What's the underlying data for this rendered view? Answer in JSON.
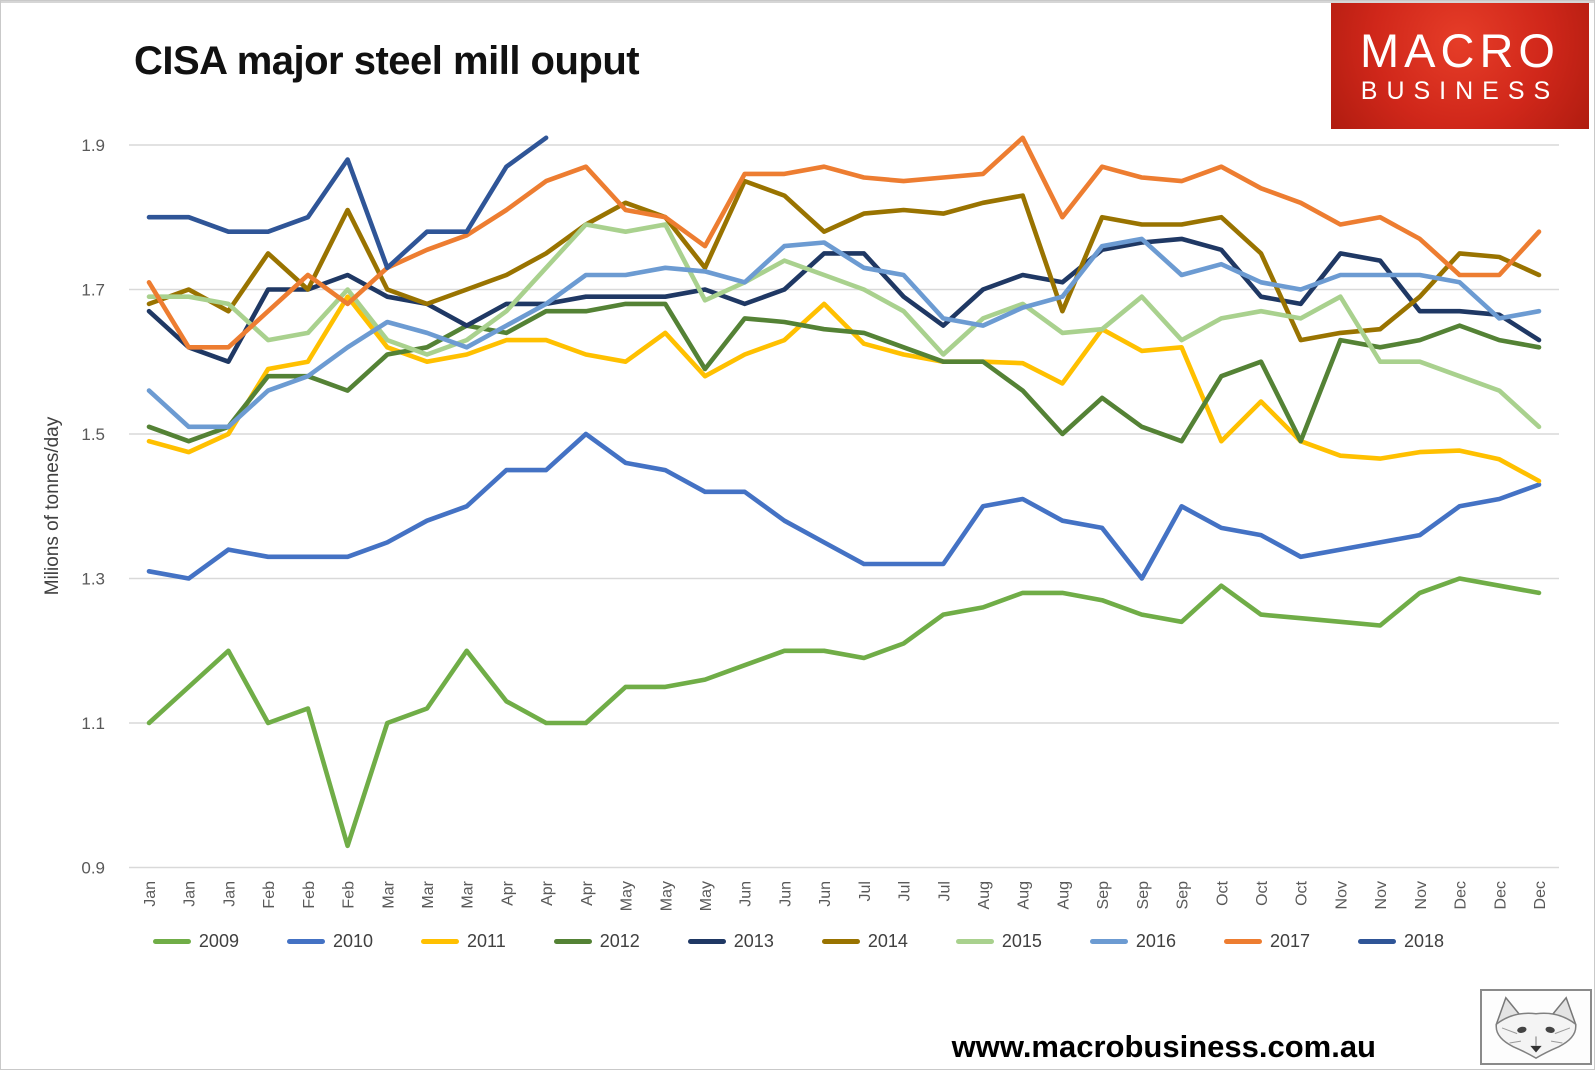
{
  "title": "CISA major steel mill ouput",
  "logo": {
    "line1": "MACRO",
    "line2": "BUSINESS"
  },
  "footer": {
    "website": "www.macrobusiness.com.au",
    "fox_icon": "fox-sketch-icon"
  },
  "chart_data": {
    "type": "line",
    "title": "CISA major steel mill ouput",
    "xlabel": "",
    "ylabel": "Milions of tonnes/day",
    "ylim": [
      0.9,
      1.95
    ],
    "yticks": [
      1.9,
      1.7,
      1.5,
      1.3,
      1.1,
      0.9
    ],
    "grid": "horizontal",
    "legend_position": "bottom",
    "x_labels": [
      "Jan",
      "Jan",
      "Jan",
      "Feb",
      "Feb",
      "Feb",
      "Mar",
      "Mar",
      "Mar",
      "Apr",
      "Apr",
      "Apr",
      "May",
      "May",
      "May",
      "Jun",
      "Jun",
      "Jun",
      "Jul",
      "Jul",
      "Jul",
      "Aug",
      "Aug",
      "Aug",
      "Sep",
      "Sep",
      "Sep",
      "Oct",
      "Oct",
      "Oct",
      "Nov",
      "Nov",
      "Nov",
      "Dec",
      "Dec",
      "Dec"
    ],
    "series": [
      {
        "name": "2009",
        "color": "#70AD47",
        "values": [
          1.1,
          1.15,
          1.2,
          1.1,
          1.12,
          0.93,
          1.1,
          1.12,
          1.2,
          1.13,
          1.1,
          1.1,
          1.15,
          1.15,
          1.16,
          1.18,
          1.2,
          1.2,
          1.19,
          1.21,
          1.25,
          1.26,
          1.28,
          1.28,
          1.27,
          1.25,
          1.24,
          1.29,
          1.25,
          1.245,
          1.24,
          1.235,
          1.28,
          1.3,
          1.29,
          1.28
        ]
      },
      {
        "name": "2010",
        "color": "#4472C4",
        "values": [
          1.31,
          1.3,
          1.34,
          1.33,
          1.33,
          1.33,
          1.35,
          1.38,
          1.4,
          1.45,
          1.45,
          1.5,
          1.46,
          1.45,
          1.42,
          1.42,
          1.38,
          1.35,
          1.32,
          1.32,
          1.32,
          1.4,
          1.41,
          1.38,
          1.37,
          1.3,
          1.4,
          1.37,
          1.36,
          1.33,
          1.34,
          1.35,
          1.36,
          1.4,
          1.41,
          1.43
        ]
      },
      {
        "name": "2011",
        "color": "#FFC000",
        "values": [
          1.49,
          1.475,
          1.5,
          1.59,
          1.6,
          1.69,
          1.62,
          1.6,
          1.61,
          1.63,
          1.63,
          1.61,
          1.6,
          1.64,
          1.58,
          1.61,
          1.63,
          1.68,
          1.625,
          1.61,
          1.6,
          1.6,
          1.598,
          1.57,
          1.645,
          1.615,
          1.62,
          1.49,
          1.545,
          1.49,
          1.47,
          1.466,
          1.475,
          1.477,
          1.465,
          1.435
        ]
      },
      {
        "name": "2012",
        "color": "#548235",
        "values": [
          1.51,
          1.49,
          1.51,
          1.58,
          1.58,
          1.56,
          1.61,
          1.62,
          1.65,
          1.64,
          1.67,
          1.67,
          1.68,
          1.68,
          1.59,
          1.66,
          1.655,
          1.645,
          1.64,
          1.62,
          1.6,
          1.6,
          1.56,
          1.5,
          1.55,
          1.51,
          1.49,
          1.58,
          1.6,
          1.49,
          1.63,
          1.62,
          1.63,
          1.65,
          1.63,
          1.62
        ]
      },
      {
        "name": "2013",
        "color": "#1F3864",
        "values": [
          1.67,
          1.62,
          1.6,
          1.7,
          1.7,
          1.72,
          1.69,
          1.68,
          1.65,
          1.68,
          1.68,
          1.69,
          1.69,
          1.69,
          1.7,
          1.68,
          1.7,
          1.75,
          1.75,
          1.69,
          1.65,
          1.7,
          1.72,
          1.71,
          1.755,
          1.765,
          1.77,
          1.755,
          1.69,
          1.68,
          1.75,
          1.74,
          1.67,
          1.67,
          1.665,
          1.63
        ]
      },
      {
        "name": "2014",
        "color": "#997300",
        "values": [
          1.68,
          1.7,
          1.67,
          1.75,
          1.7,
          1.81,
          1.7,
          1.68,
          1.7,
          1.72,
          1.75,
          1.79,
          1.82,
          1.8,
          1.73,
          1.85,
          1.83,
          1.78,
          1.805,
          1.81,
          1.805,
          1.82,
          1.83,
          1.67,
          1.8,
          1.79,
          1.79,
          1.8,
          1.75,
          1.63,
          1.64,
          1.645,
          1.69,
          1.75,
          1.745,
          1.72
        ]
      },
      {
        "name": "2015",
        "color": "#A9D18E",
        "values": [
          1.69,
          1.69,
          1.68,
          1.63,
          1.64,
          1.7,
          1.63,
          1.61,
          1.63,
          1.67,
          1.73,
          1.79,
          1.78,
          1.79,
          1.685,
          1.71,
          1.74,
          1.72,
          1.7,
          1.67,
          1.61,
          1.66,
          1.68,
          1.64,
          1.645,
          1.69,
          1.63,
          1.66,
          1.67,
          1.66,
          1.69,
          1.6,
          1.6,
          1.58,
          1.56,
          1.51
        ]
      },
      {
        "name": "2016",
        "color": "#6C9BD2",
        "values": [
          1.56,
          1.51,
          1.51,
          1.56,
          1.58,
          1.62,
          1.655,
          1.64,
          1.62,
          1.65,
          1.68,
          1.72,
          1.72,
          1.73,
          1.725,
          1.71,
          1.76,
          1.765,
          1.73,
          1.72,
          1.66,
          1.65,
          1.675,
          1.69,
          1.76,
          1.77,
          1.72,
          1.735,
          1.71,
          1.7,
          1.72,
          1.72,
          1.72,
          1.71,
          1.66,
          1.67
        ]
      },
      {
        "name": "2017",
        "color": "#ED7D31",
        "values": [
          1.71,
          1.62,
          1.62,
          1.67,
          1.72,
          1.68,
          1.73,
          1.755,
          1.775,
          1.81,
          1.85,
          1.87,
          1.81,
          1.8,
          1.76,
          1.86,
          1.86,
          1.87,
          1.855,
          1.85,
          1.855,
          1.86,
          1.91,
          1.8,
          1.87,
          1.855,
          1.85,
          1.87,
          1.84,
          1.82,
          1.79,
          1.8,
          1.77,
          1.72,
          1.72,
          1.78
        ]
      },
      {
        "name": "2018",
        "color": "#2F5597",
        "values": [
          1.8,
          1.8,
          1.78,
          1.78,
          1.8,
          1.88,
          1.73,
          1.78,
          1.78,
          1.87,
          1.91
        ]
      }
    ]
  }
}
